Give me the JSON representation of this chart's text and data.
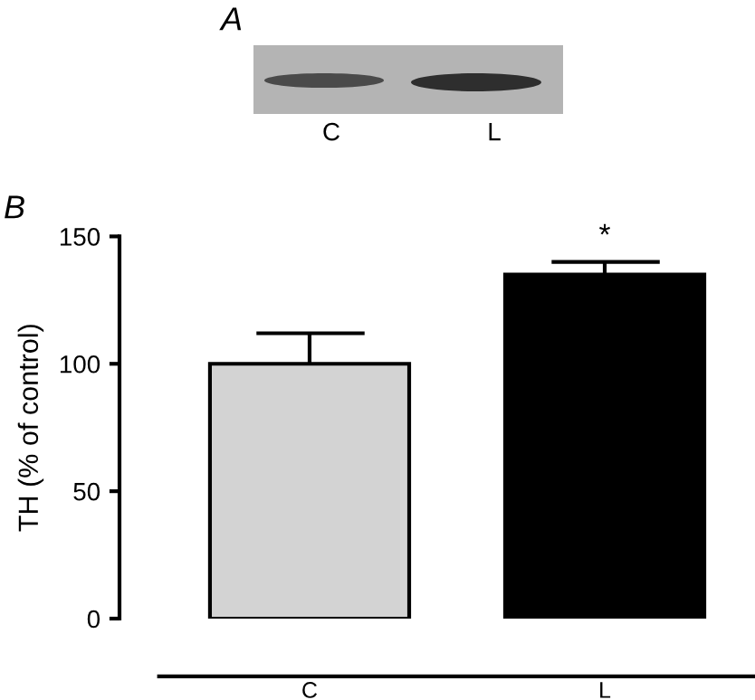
{
  "chart_data": {
    "type": "bar",
    "ylabel": "TH (% of control)",
    "categories": [
      "C",
      "L"
    ],
    "values": [
      100,
      135
    ],
    "colors": [
      "#d3d3d3",
      "#000000"
    ],
    "errors": [
      12,
      5
    ],
    "ylim": [
      0,
      150
    ],
    "yticks": [
      0,
      50,
      100,
      150
    ],
    "grid": false,
    "legend": false,
    "annotations": [
      "*",
      "A",
      "B",
      "C",
      "L"
    ]
  }
}
